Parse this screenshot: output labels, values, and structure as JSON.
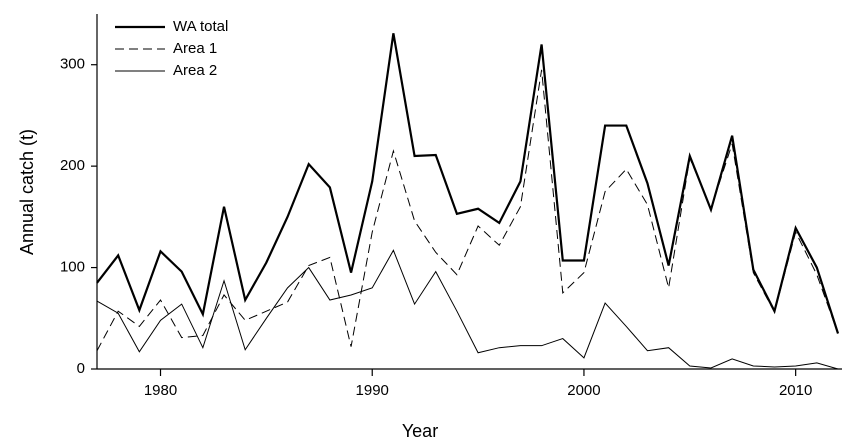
{
  "chart_data": {
    "type": "line",
    "x_label": "Year",
    "y_label": "Annual catch (t)",
    "x": [
      1977,
      1978,
      1979,
      1980,
      1981,
      1982,
      1983,
      1984,
      1985,
      1986,
      1987,
      1988,
      1989,
      1990,
      1991,
      1992,
      1993,
      1994,
      1995,
      1996,
      1997,
      1998,
      1999,
      2000,
      2001,
      2002,
      2003,
      2004,
      2005,
      2006,
      2007,
      2008,
      2009,
      2010,
      2011,
      2012
    ],
    "series": [
      {
        "name": "WA total",
        "color": "#000000",
        "linewidth": 2.2,
        "dashed": false,
        "values": [
          85,
          112,
          58,
          116,
          96,
          54,
          160,
          68,
          105,
          150,
          202,
          179,
          95,
          185,
          331,
          210,
          211,
          153,
          158,
          144,
          185,
          320,
          107,
          107,
          240,
          240,
          183,
          102,
          210,
          157,
          230,
          98,
          57,
          139,
          100,
          35
        ]
      },
      {
        "name": "Area 1",
        "color": "#000000",
        "linewidth": 1,
        "dashed": true,
        "values": [
          18,
          57,
          42,
          68,
          31,
          33,
          73,
          48,
          57,
          66,
          102,
          110,
          22,
          135,
          215,
          146,
          115,
          93,
          141,
          122,
          160,
          295,
          75,
          95,
          175,
          197,
          162,
          80,
          208,
          158,
          222,
          95,
          56,
          135,
          93,
          35
        ]
      },
      {
        "name": "Area 2",
        "color": "#000000",
        "linewidth": 1,
        "dashed": false,
        "values": [
          67,
          55,
          17,
          48,
          64,
          21,
          87,
          19,
          50,
          80,
          100,
          68,
          73,
          80,
          117,
          64,
          96,
          57,
          16,
          21,
          23,
          23,
          30,
          11,
          65,
          42,
          18,
          21,
          3,
          1,
          10,
          3,
          2,
          3,
          6,
          0
        ]
      }
    ],
    "xlim": [
      1977,
      2012
    ],
    "xticks": [
      1980,
      1990,
      2000,
      2010
    ],
    "ylim": [
      0,
      350
    ],
    "yticks": [
      0,
      100,
      200,
      300
    ],
    "legend": "top-left",
    "grid": false
  }
}
